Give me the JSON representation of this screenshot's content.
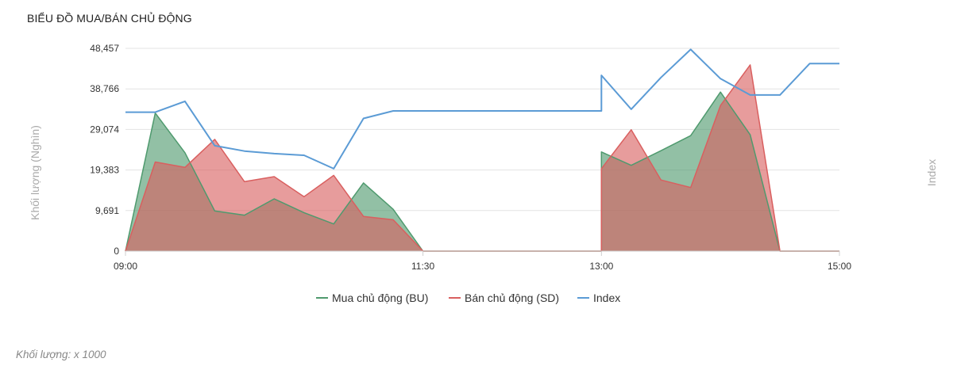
{
  "page": {
    "title": "BIỂU ĐỒ MUA/BÁN CHỦ ĐỘNG",
    "footnote": "Khối lượng: x 1000"
  },
  "chart_data": {
    "type": "area",
    "title": "BIỂU ĐỒ MUA/BÁN CHỦ ĐỘNG",
    "ylabel": "Khối lượng (Nghìn)",
    "y2label": "Index",
    "ylim": [
      0,
      48457
    ],
    "yticks": [
      "0",
      "9,691",
      "19,383",
      "29,074",
      "38,766",
      "48,457"
    ],
    "ytick_values": [
      0,
      9691,
      19383,
      29074,
      38766,
      48457
    ],
    "xlim": [
      "09:00",
      "15:00"
    ],
    "xticks": [
      {
        "label": "09:00",
        "t": "09:00"
      },
      {
        "label": "11:30",
        "t": "11:30"
      },
      {
        "label": "13:00",
        "t": "13:00"
      },
      {
        "label": "15:00",
        "t": "15:00"
      }
    ],
    "grid": true,
    "legend_position": "bottom",
    "series": [
      {
        "name": "Mua chủ động (BU)",
        "key": "bu",
        "color": "#4f9a6e",
        "fill": "rgba(79,154,110,0.62)",
        "points": [
          [
            "09:00",
            0
          ],
          [
            "09:15",
            33000
          ],
          [
            "09:30",
            23500
          ],
          [
            "09:45",
            9600
          ],
          [
            "10:00",
            8600
          ],
          [
            "10:15",
            12500
          ],
          [
            "10:30",
            9200
          ],
          [
            "10:45",
            6500
          ],
          [
            "11:00",
            16300
          ],
          [
            "11:15",
            10000
          ],
          [
            "11:30",
            0
          ],
          [
            "13:00",
            0
          ],
          [
            "13:00",
            23700
          ],
          [
            "13:15",
            20500
          ],
          [
            "13:30",
            24000
          ],
          [
            "13:45",
            27600
          ],
          [
            "14:00",
            38000
          ],
          [
            "14:15",
            27800
          ],
          [
            "14:30",
            0
          ],
          [
            "15:00",
            0
          ]
        ]
      },
      {
        "name": "Bán chủ động (SD)",
        "key": "sd",
        "color": "#d95f5f",
        "fill": "rgba(217,95,95,0.62)",
        "points": [
          [
            "09:00",
            0
          ],
          [
            "09:15",
            21300
          ],
          [
            "09:30",
            20000
          ],
          [
            "09:45",
            26700
          ],
          [
            "10:00",
            16600
          ],
          [
            "10:15",
            17800
          ],
          [
            "10:30",
            13000
          ],
          [
            "10:45",
            18100
          ],
          [
            "11:00",
            8300
          ],
          [
            "11:15",
            7500
          ],
          [
            "11:30",
            0
          ],
          [
            "13:00",
            0
          ],
          [
            "13:00",
            19700
          ],
          [
            "13:15",
            29000
          ],
          [
            "13:30",
            17000
          ],
          [
            "13:45",
            15200
          ],
          [
            "14:00",
            34800
          ],
          [
            "14:15",
            44500
          ],
          [
            "14:30",
            0
          ],
          [
            "15:00",
            0
          ]
        ]
      },
      {
        "name": "Index",
        "key": "index",
        "color": "#5b9bd5",
        "points": [
          [
            "09:00",
            33200
          ],
          [
            "09:15",
            33200
          ],
          [
            "09:30",
            35800
          ],
          [
            "09:45",
            25200
          ],
          [
            "10:00",
            23900
          ],
          [
            "10:15",
            23300
          ],
          [
            "10:30",
            22900
          ],
          [
            "10:45",
            19700
          ],
          [
            "11:00",
            31700
          ],
          [
            "11:15",
            33500
          ],
          [
            "11:30",
            33500
          ],
          [
            "13:00",
            33500
          ],
          [
            "13:00",
            42000
          ],
          [
            "13:15",
            33900
          ],
          [
            "13:30",
            41500
          ],
          [
            "13:45",
            48200
          ],
          [
            "14:00",
            41200
          ],
          [
            "14:15",
            37300
          ],
          [
            "14:30",
            37300
          ],
          [
            "14:45",
            44800
          ],
          [
            "15:00",
            44800
          ]
        ]
      }
    ]
  }
}
